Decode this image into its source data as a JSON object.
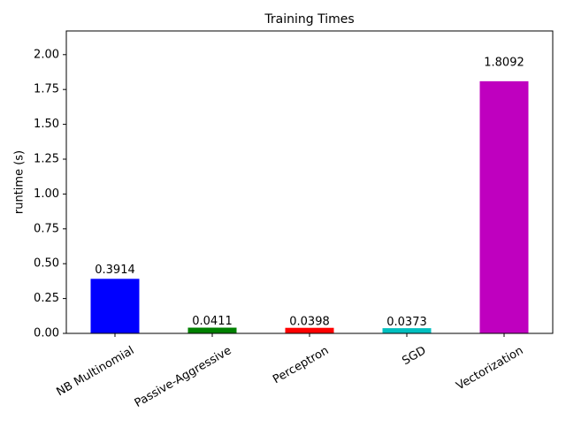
{
  "chart_data": {
    "type": "bar",
    "title": "Training Times",
    "y_label": "runtime (s)",
    "categories": [
      "NB Multinomial",
      "Passive-Aggressive",
      "Perceptron",
      "SGD",
      "Vectorization"
    ],
    "values": [
      0.3914,
      0.0411,
      0.0398,
      0.0373,
      1.8092
    ],
    "colors": [
      "#0000ff",
      "#008000",
      "#ff0000",
      "#00bfbf",
      "#bf00bf"
    ],
    "ylim": [
      0,
      2.17
    ],
    "yticks": [
      {
        "value": 0,
        "label": "0.00"
      },
      0.25,
      {
        "value": 0.5,
        "label": "0.50"
      },
      0.75,
      {
        "value": 1,
        "label": "1.00"
      },
      1.25,
      {
        "value": 1.5,
        "label": "1.50"
      },
      1.75,
      {
        "value": 2,
        "label": "2.00"
      }
    ],
    "grid": false
  }
}
